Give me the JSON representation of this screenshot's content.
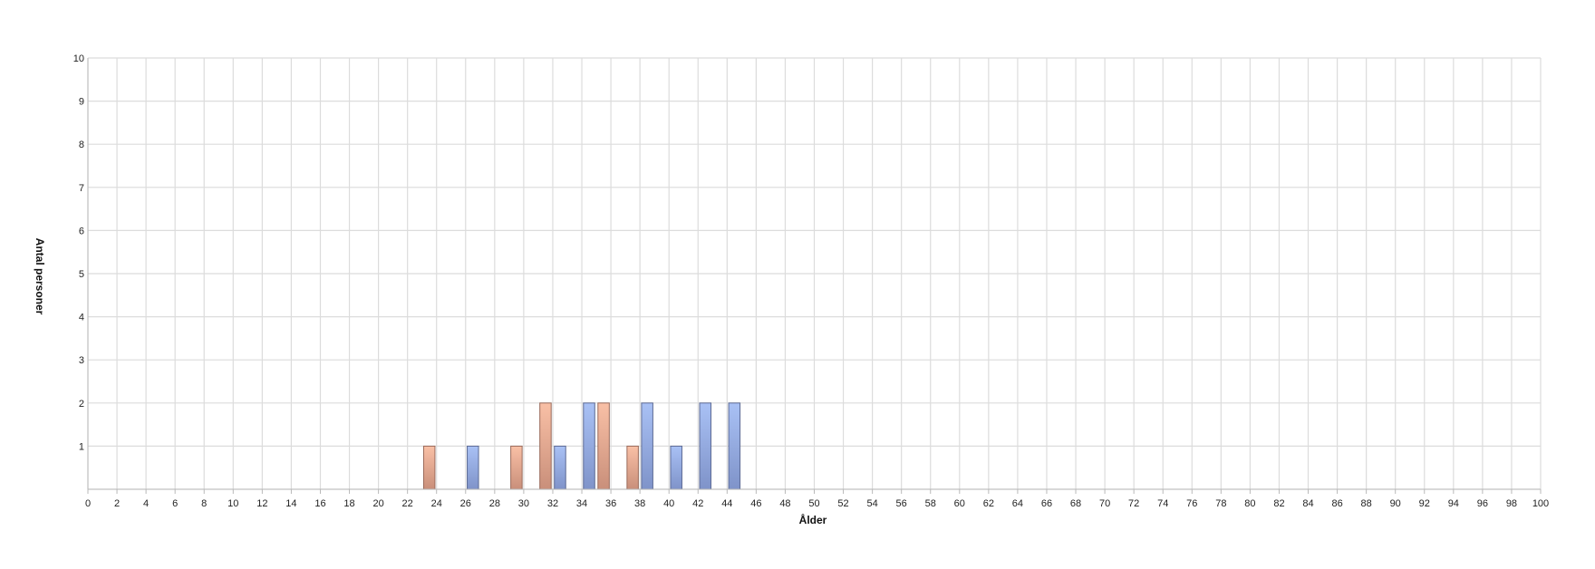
{
  "chart_data": {
    "type": "bar",
    "title": "",
    "xlabel": "Ålder",
    "ylabel": "Antal personer",
    "xlim": [
      0,
      100
    ],
    "ylim": [
      0,
      10
    ],
    "x_tick_step": 2,
    "y_tick_step": 1,
    "grid": true,
    "colors": {
      "series_a_top": "#f9c0a6",
      "series_a_bottom": "#c98f7a",
      "series_a_stroke": "#9a6a5a",
      "series_b_top": "#a9c1f5",
      "series_b_bottom": "#7f93c9",
      "series_b_stroke": "#5c6a94"
    },
    "series": [
      {
        "id": "a",
        "points": [
          {
            "x": 23,
            "y": 1
          },
          {
            "x": 29,
            "y": 1
          },
          {
            "x": 31,
            "y": 2
          },
          {
            "x": 35,
            "y": 2
          },
          {
            "x": 37,
            "y": 1
          }
        ]
      },
      {
        "id": "b",
        "points": [
          {
            "x": 26,
            "y": 1
          },
          {
            "x": 32,
            "y": 1
          },
          {
            "x": 34,
            "y": 2
          },
          {
            "x": 38,
            "y": 2
          },
          {
            "x": 40,
            "y": 1
          },
          {
            "x": 42,
            "y": 2
          },
          {
            "x": 44,
            "y": 2
          }
        ]
      }
    ]
  }
}
